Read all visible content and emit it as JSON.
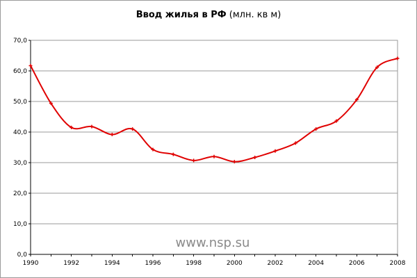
{
  "chart_data": {
    "type": "line",
    "title_bold": "Ввод жилья в РФ",
    "title_unit": "(млн. кв м)",
    "xlabel": "",
    "ylabel": "",
    "xlim": [
      1990,
      2008
    ],
    "ylim": [
      0,
      70
    ],
    "y_ticks": [
      "0,0",
      "10,0",
      "20,0",
      "30,0",
      "40,0",
      "50,0",
      "60,0",
      "70,0"
    ],
    "x_ticks": [
      "1990",
      "1992",
      "1994",
      "1996",
      "1998",
      "2000",
      "2002",
      "2004",
      "2006",
      "2008"
    ],
    "grid": true,
    "legend": "none",
    "series": [
      {
        "color": "#e00000",
        "x": [
          1990,
          1991,
          1992,
          1993,
          1994,
          1995,
          1996,
          1997,
          1998,
          1999,
          2000,
          2001,
          2002,
          2003,
          2004,
          2005,
          2006,
          2007,
          2008
        ],
        "values": [
          61.7,
          49.4,
          41.5,
          41.8,
          39.2,
          41.0,
          34.3,
          32.7,
          30.7,
          32.0,
          30.3,
          31.7,
          33.8,
          36.4,
          41.0,
          43.6,
          50.6,
          61.2,
          64.1
        ]
      }
    ]
  },
  "watermark": "www.nsp.su"
}
